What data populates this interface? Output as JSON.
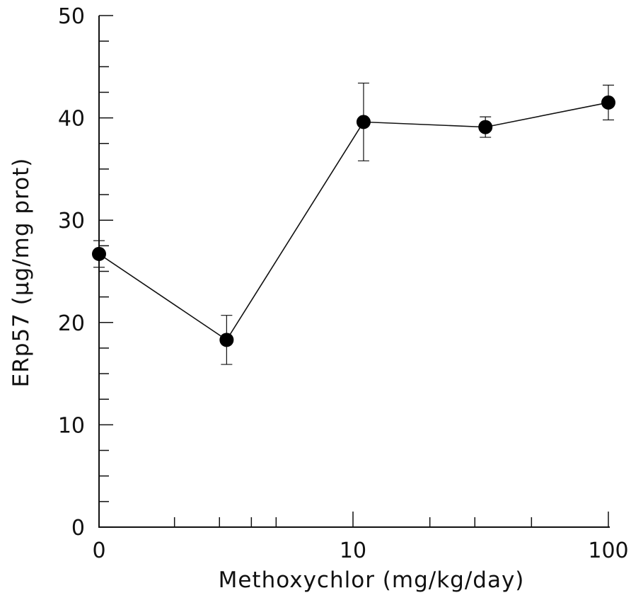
{
  "chart_data": {
    "type": "scatter",
    "xlabel": "Methoxychlor (mg/kg/day)",
    "ylabel": "ERp57 (µg/mg prot)",
    "x_scale": "log (with 0 at origin)",
    "xlim": [
      0,
      100
    ],
    "ylim": [
      0,
      50
    ],
    "x_tick_labels": [
      "0",
      "10",
      "100"
    ],
    "y_tick_labels": [
      "0",
      "10",
      "20",
      "30",
      "40",
      "50"
    ],
    "grid": false,
    "connected": true,
    "series": [
      {
        "x": [
          0,
          3.2,
          11,
          33,
          100
        ],
        "y": [
          26.7,
          18.3,
          39.6,
          39.1,
          41.5
        ],
        "error": [
          1.3,
          2.4,
          3.8,
          1.0,
          1.7
        ]
      }
    ]
  }
}
